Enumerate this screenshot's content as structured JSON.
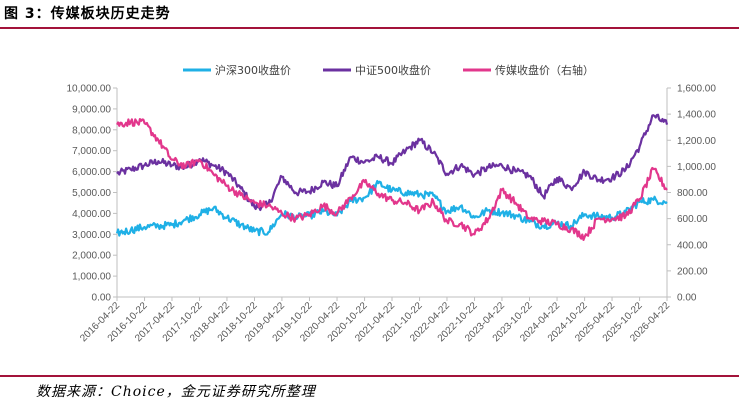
{
  "figure": {
    "title": "图 3：传媒板块历史走势",
    "source": "数据来源：Choice，金元证券研究所整理"
  },
  "colors": {
    "rule": "#a3133a",
    "series": [
      "#1fb0e6",
      "#6b31a0",
      "#e2378c"
    ]
  },
  "chart_data": {
    "type": "line",
    "title": "",
    "legend_position": "top",
    "grid": false,
    "x_ticks": [
      "2016-04-22",
      "2016-10-22",
      "2017-04-22",
      "2017-10-22",
      "2018-04-22",
      "2018-10-22",
      "2019-04-22",
      "2019-10-22",
      "2020-04-22",
      "2020-10-22",
      "2021-04-22",
      "2021-10-22",
      "2022-04-22",
      "2022-10-22",
      "2023-04-22",
      "2023-10-22",
      "2024-04-22",
      "2024-10-22",
      "2025-04-22",
      "2025-10-22",
      "2026-04-22"
    ],
    "y_left": {
      "min": 0,
      "max": 10000,
      "ticks": [
        "0.00",
        "1,000.00",
        "2,000.00",
        "3,000.00",
        "4,000.00",
        "5,000.00",
        "6,000.00",
        "7,000.00",
        "8,000.00",
        "9,000.00",
        "10,000.00"
      ]
    },
    "y_right": {
      "min": 0,
      "max": 1600,
      "ticks": [
        "0.00",
        "200.00",
        "400.00",
        "600.00",
        "800.00",
        "1,000.00",
        "1,200.00",
        "1,400.00",
        "1,600.00"
      ]
    },
    "series": [
      {
        "name": "沪深300收盘价",
        "axis": "left",
        "x": [
          "2016-04-22",
          "2016-07-22",
          "2016-10-22",
          "2017-01-22",
          "2017-04-22",
          "2017-07-22",
          "2017-10-22",
          "2018-01-22",
          "2018-04-22",
          "2018-07-22",
          "2018-10-22",
          "2019-01-22",
          "2019-04-22",
          "2019-07-22",
          "2019-10-22",
          "2020-01-22",
          "2020-04-22",
          "2020-07-22",
          "2020-10-22",
          "2021-01-22",
          "2021-04-22",
          "2021-07-22",
          "2021-10-22",
          "2022-01-22",
          "2022-04-22",
          "2022-07-22",
          "2022-10-22",
          "2023-01-22",
          "2023-04-22",
          "2023-07-22",
          "2023-10-22",
          "2024-01-22",
          "2024-04-22",
          "2024-07-22",
          "2024-10-22",
          "2025-01-22",
          "2025-04-22",
          "2025-07-22",
          "2025-10-22",
          "2026-01-22",
          "2026-04-22"
        ],
        "values": [
          3050,
          3200,
          3350,
          3400,
          3450,
          3700,
          3950,
          4250,
          3800,
          3450,
          3150,
          3100,
          4000,
          3800,
          3900,
          4100,
          3900,
          4600,
          4750,
          5450,
          5100,
          5000,
          4900,
          4850,
          4100,
          4350,
          3800,
          4150,
          4050,
          3900,
          3600,
          3400,
          3550,
          3400,
          3950,
          3850,
          3800,
          4050,
          4550,
          4650,
          4550
        ]
      },
      {
        "name": "中证500收盘价",
        "axis": "left",
        "x": [
          "2016-04-22",
          "2016-07-22",
          "2016-10-22",
          "2017-01-22",
          "2017-04-22",
          "2017-07-22",
          "2017-10-22",
          "2018-01-22",
          "2018-04-22",
          "2018-07-22",
          "2018-10-22",
          "2019-01-22",
          "2019-04-22",
          "2019-07-22",
          "2019-10-22",
          "2020-01-22",
          "2020-04-22",
          "2020-07-22",
          "2020-10-22",
          "2021-01-22",
          "2021-04-22",
          "2021-07-22",
          "2021-10-22",
          "2022-01-22",
          "2022-04-22",
          "2022-07-22",
          "2022-10-22",
          "2023-01-22",
          "2023-04-22",
          "2023-07-22",
          "2023-10-22",
          "2024-01-22",
          "2024-04-22",
          "2024-07-22",
          "2024-10-22",
          "2025-01-22",
          "2025-04-22",
          "2025-07-22",
          "2025-10-22",
          "2026-01-22",
          "2026-04-22"
        ],
        "values": [
          5900,
          6100,
          6300,
          6500,
          6300,
          6200,
          6600,
          6300,
          5950,
          5200,
          4300,
          4400,
          5750,
          5000,
          5050,
          5500,
          5300,
          6700,
          6450,
          6700,
          6400,
          7000,
          7500,
          6900,
          5900,
          6300,
          5850,
          6200,
          6300,
          6000,
          5800,
          4800,
          5700,
          5200,
          6000,
          5600,
          5700,
          6100,
          7200,
          8700,
          8250
        ]
      },
      {
        "name": "传媒收盘价（右轴）",
        "axis": "right",
        "x": [
          "2016-04-22",
          "2016-07-22",
          "2016-10-22",
          "2017-01-22",
          "2017-04-22",
          "2017-07-22",
          "2017-10-22",
          "2018-01-22",
          "2018-04-22",
          "2018-07-22",
          "2018-10-22",
          "2019-01-22",
          "2019-04-22",
          "2019-07-22",
          "2019-10-22",
          "2020-01-22",
          "2020-04-22",
          "2020-07-22",
          "2020-10-22",
          "2021-01-22",
          "2021-04-22",
          "2021-07-22",
          "2021-10-22",
          "2022-01-22",
          "2022-04-22",
          "2022-07-22",
          "2022-10-22",
          "2023-01-22",
          "2023-04-22",
          "2023-07-22",
          "2023-10-22",
          "2024-01-22",
          "2024-04-22",
          "2024-07-22",
          "2024-10-22",
          "2025-01-22",
          "2025-04-22",
          "2025-07-22",
          "2025-10-22",
          "2026-01-22",
          "2026-04-22"
        ],
        "values": [
          1320,
          1340,
          1330,
          1200,
          1050,
          1000,
          1050,
          940,
          850,
          780,
          720,
          700,
          640,
          600,
          630,
          700,
          640,
          760,
          880,
          790,
          740,
          720,
          660,
          730,
          580,
          560,
          480,
          600,
          820,
          720,
          600,
          580,
          560,
          520,
          460,
          600,
          600,
          620,
          750,
          980,
          820
        ]
      }
    ]
  }
}
